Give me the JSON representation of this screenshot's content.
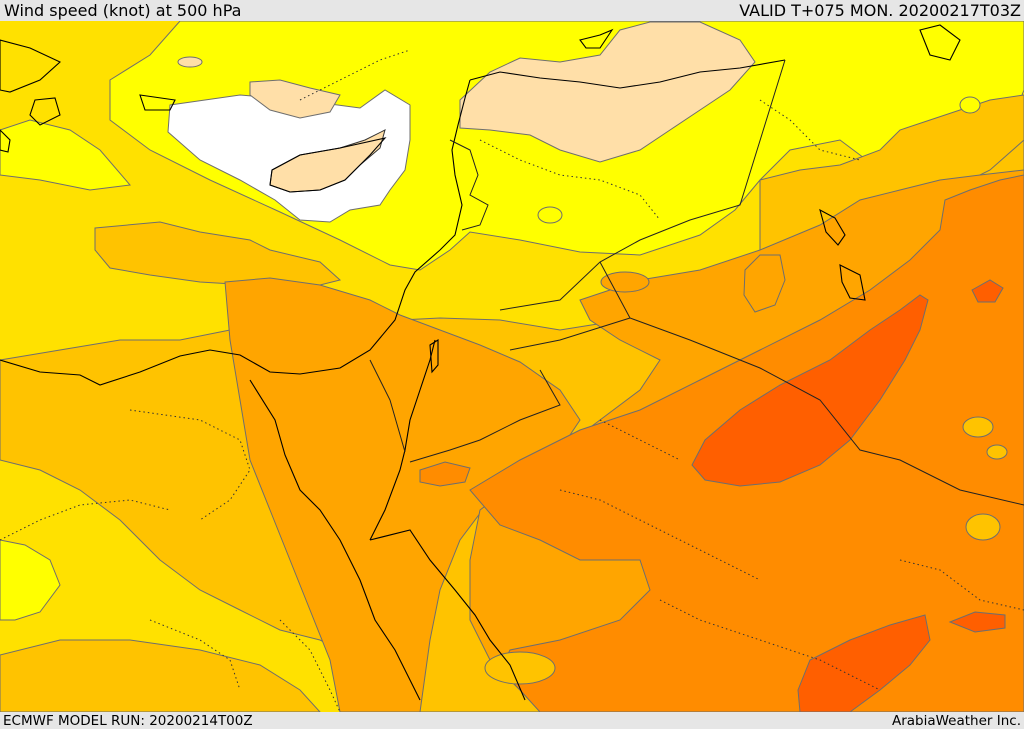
{
  "header": {
    "title": "Wind speed (knot) at 500 hPa",
    "valid": "VALID T+075 MON. 20200217T03Z"
  },
  "footer": {
    "model_run": "ECMWF MODEL RUN: 20200214T00Z",
    "credit": "ArabiaWeather Inc."
  },
  "palette": {
    "white": "#ffffff",
    "peach": "#ffdfa8",
    "yellow": "#ffff00",
    "gold": "#ffe100",
    "amber": "#ffc300",
    "orange_light": "#ffa500",
    "orange": "#ff8c00",
    "orange_red": "#ff5f00",
    "contour_line": "#6e6e6e",
    "coast_line": "#000000"
  }
}
